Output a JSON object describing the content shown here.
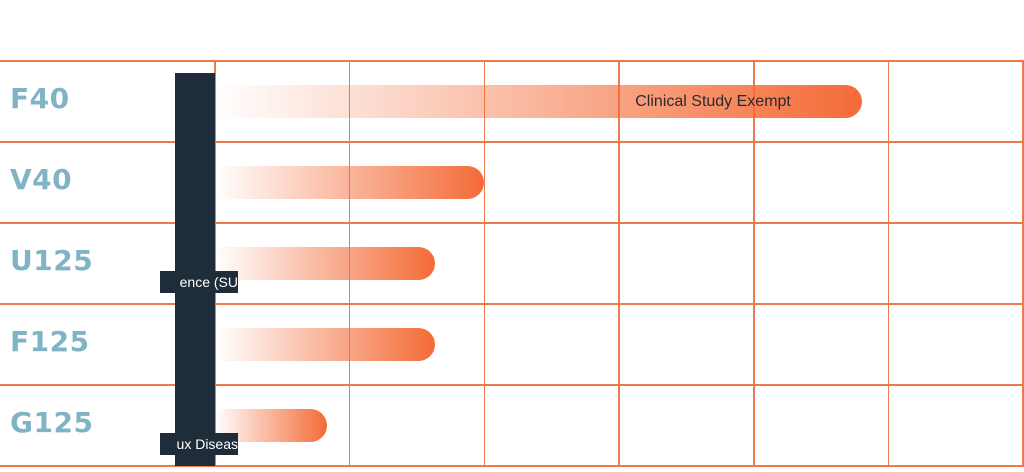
{
  "chart_data": {
    "type": "bar",
    "orientation": "horizontal",
    "categories": [
      "F40",
      "V40",
      "U125",
      "F125",
      "G125"
    ],
    "values": [
      4.8,
      2.0,
      1.63,
      1.63,
      0.83
    ],
    "bar_labels": [
      "Clinical Study Exempt",
      "",
      "",
      "",
      ""
    ],
    "xlim": [
      0,
      6
    ],
    "grid": true,
    "colors": {
      "bar": "#f46b37",
      "grid": "#ee7a4b",
      "label": "#80b3c4",
      "dark": "#1f2d3a"
    },
    "side_tags": [
      {
        "text": "ence (SU",
        "after_row": 2
      },
      {
        "text": "ux Diseas",
        "after_row": 4
      }
    ]
  }
}
